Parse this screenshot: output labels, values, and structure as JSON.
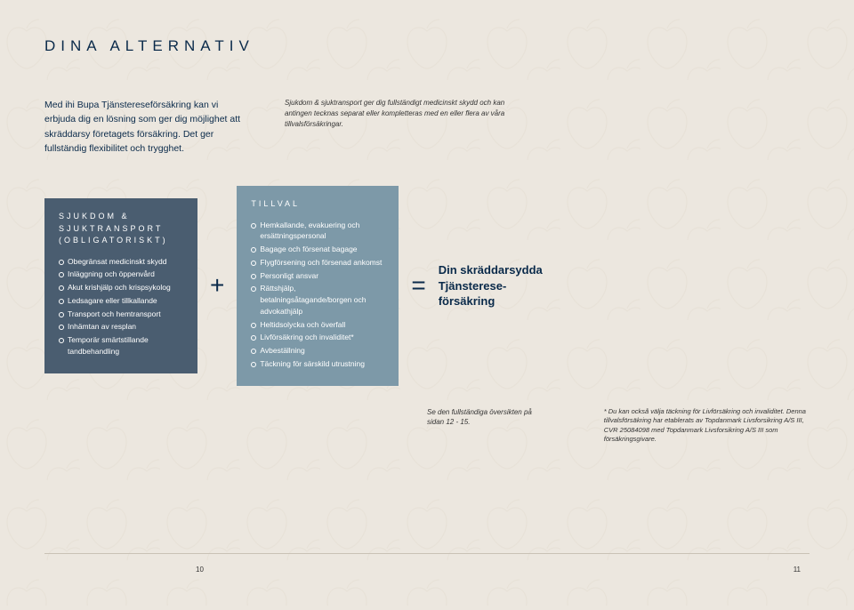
{
  "header": "DINA ALTERNATIV",
  "intro": {
    "left": "Med ihi Bupa Tjänstereseförsäkring kan vi erbjuda dig en lösning som ger dig möjlighet att skräddarsy företagets försäkring. Det ger fullständig flexibilitet och trygghet.",
    "right": "Sjukdom & sjuktransport ger dig fullständigt medicinskt skydd och kan antingen tecknas separat eller kompletteras med en eller flera av våra tillvalsförsäkringar."
  },
  "mandatory": {
    "title": "SJUKDOM & SJUKTRANSPORT (OBLIGATORISKT)",
    "items": [
      "Obegränsat medicinskt skydd",
      "Inläggning och öppenvård",
      "Akut krishjälp och krispsykolog",
      "Ledsagare eller tillkallande",
      "Transport och hemtransport",
      "Inhämtan av resplan",
      "Temporär smärtstillande tandbehandling"
    ]
  },
  "optional": {
    "title": "TILLVAL",
    "items": [
      "Hemkallande, evakuering och ersättningspersonal",
      "Bagage och försenat bagage",
      "Flygförsening och försenad ankomst",
      "Personligt ansvar",
      "Rättshjälp, betalningsåtagande/borgen och advokathjälp",
      "Heltidsolycka och överfall",
      "Livförsäkring och invaliditet*",
      "Avbeställning",
      "Täckning för särskild utrustning"
    ]
  },
  "operators": {
    "plus": "+",
    "equals": "="
  },
  "result": "Din skräddar­sydda Tjänsterese­försäkring",
  "footnote_ref": "Se den fullständiga översikten på sidan 12 - 15.",
  "footnote_right": "* Du kan också välja täckning för Livförsäkring och invaliditet. Denna tillvalsförsäkring har etablerats av Topdanmark Livsforsikring A/S III, CVR 25084098 med Topdanmark Livsforsikring A/S III som försäkringsgivare.",
  "page_left": "10",
  "page_right": "11",
  "colors": {
    "bg": "#ece7df",
    "heading": "#0a2a4a",
    "box1": "#4a5d70",
    "box2": "#7d99a8",
    "pattern": "#e4ded3"
  }
}
